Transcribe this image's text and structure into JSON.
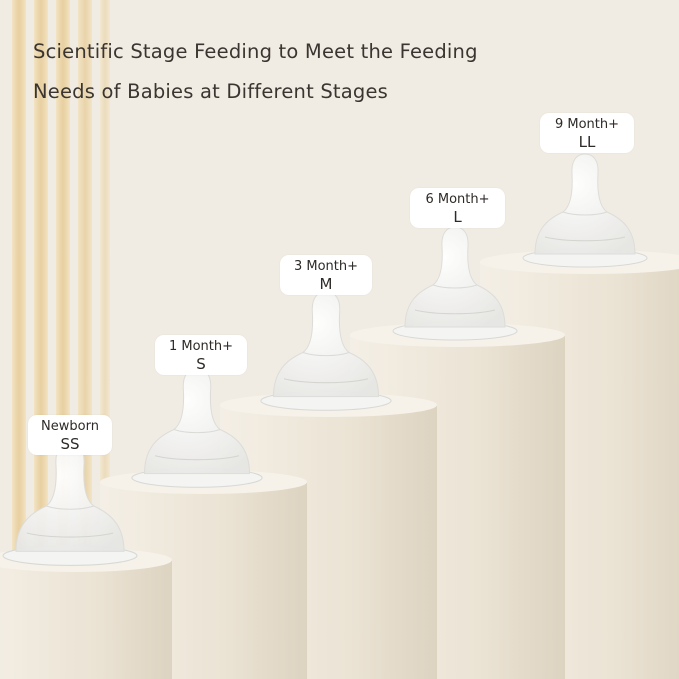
{
  "headline": {
    "line1": "Scientific Stage Feeding to Meet the Feeding",
    "line2": "Needs of Babies at Different Stages"
  },
  "stages": [
    {
      "age": "Newborn",
      "size": "SS"
    },
    {
      "age": "1 Month+",
      "size": "S"
    },
    {
      "age": "3 Month+",
      "size": "M"
    },
    {
      "age": "6 Month+",
      "size": "L"
    },
    {
      "age": "9 Month+",
      "size": "LL"
    }
  ],
  "colors": {
    "background": "#f1ece3",
    "pedestal": "#ebe4d6",
    "accent_stripes": "#e6c98a"
  }
}
